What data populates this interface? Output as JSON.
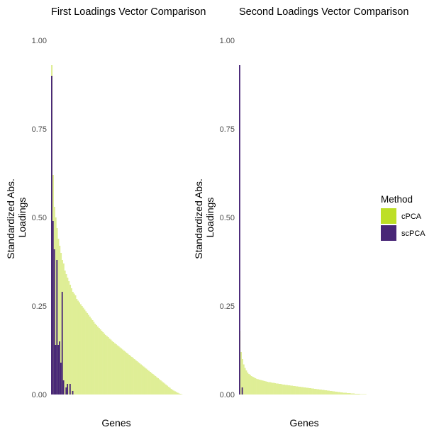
{
  "legend": {
    "title": "Method",
    "entries": [
      {
        "label": "cPCA",
        "color": "#dfee96",
        "key_color": "#bddf26"
      },
      {
        "label": "scPCA",
        "color": "#482677",
        "key_color": "#482677"
      }
    ]
  },
  "chart_data": [
    {
      "type": "bar",
      "title": "First Loadings Vector Comparison",
      "xlabel": "Genes",
      "ylabel": "Standardized Abs. Loadings",
      "ylim": [
        0,
        1
      ],
      "yticks": [
        "0.00",
        "0.25",
        "0.50",
        "0.75",
        "1.00"
      ],
      "x_tick_labels_shown": false,
      "n_genes": 100,
      "grid": false,
      "series": [
        {
          "name": "cPCA",
          "values": [
            0.93,
            0.62,
            0.53,
            0.5,
            0.47,
            0.44,
            0.42,
            0.4,
            0.38,
            0.37,
            0.35,
            0.34,
            0.33,
            0.32,
            0.31,
            0.3,
            0.29,
            0.285,
            0.28,
            0.27,
            0.265,
            0.26,
            0.255,
            0.25,
            0.245,
            0.24,
            0.235,
            0.23,
            0.225,
            0.22,
            0.215,
            0.21,
            0.205,
            0.2,
            0.196,
            0.192,
            0.188,
            0.184,
            0.18,
            0.176,
            0.172,
            0.168,
            0.165,
            0.162,
            0.158,
            0.155,
            0.151,
            0.148,
            0.145,
            0.142,
            0.139,
            0.136,
            0.133,
            0.13,
            0.127,
            0.124,
            0.121,
            0.118,
            0.115,
            0.112,
            0.109,
            0.106,
            0.103,
            0.1,
            0.097,
            0.094,
            0.091,
            0.088,
            0.085,
            0.082,
            0.079,
            0.076,
            0.073,
            0.07,
            0.067,
            0.064,
            0.061,
            0.058,
            0.055,
            0.052,
            0.049,
            0.046,
            0.043,
            0.04,
            0.037,
            0.034,
            0.031,
            0.028,
            0.025,
            0.022,
            0.019,
            0.016,
            0.013,
            0.011,
            0.009,
            0.007,
            0.005,
            0.003,
            0.002,
            0.001
          ]
        },
        {
          "name": "scPCA",
          "values": [
            0.9,
            0.49,
            0.41,
            0.14,
            0.38,
            0.14,
            0.15,
            0.09,
            0.29,
            0.04,
            0.0,
            0.02,
            0.03,
            0.0,
            0.03,
            0.0,
            0.01,
            0.0,
            0.0,
            0.0
          ]
        }
      ]
    },
    {
      "type": "bar",
      "title": "Second Loadings Vector Comparison",
      "xlabel": "Genes",
      "ylabel": "Standardized Abs. Loadings",
      "ylim": [
        0,
        1
      ],
      "yticks": [
        "0.00",
        "0.25",
        "0.50",
        "0.75",
        "1.00"
      ],
      "x_tick_labels_shown": false,
      "n_genes": 100,
      "grid": false,
      "series": [
        {
          "name": "cPCA",
          "values": [
            0.18,
            0.12,
            0.1,
            0.085,
            0.075,
            0.068,
            0.062,
            0.058,
            0.055,
            0.052,
            0.05,
            0.048,
            0.046,
            0.044,
            0.043,
            0.042,
            0.041,
            0.04,
            0.039,
            0.038,
            0.037,
            0.036,
            0.035,
            0.035,
            0.034,
            0.033,
            0.033,
            0.032,
            0.031,
            0.031,
            0.03,
            0.03,
            0.029,
            0.028,
            0.028,
            0.027,
            0.027,
            0.026,
            0.026,
            0.025,
            0.025,
            0.024,
            0.024,
            0.023,
            0.023,
            0.022,
            0.022,
            0.021,
            0.021,
            0.02,
            0.02,
            0.019,
            0.019,
            0.018,
            0.018,
            0.017,
            0.017,
            0.016,
            0.016,
            0.015,
            0.015,
            0.014,
            0.014,
            0.013,
            0.013,
            0.012,
            0.012,
            0.011,
            0.011,
            0.01,
            0.01,
            0.009,
            0.009,
            0.008,
            0.008,
            0.007,
            0.007,
            0.006,
            0.006,
            0.005,
            0.005,
            0.005,
            0.004,
            0.004,
            0.004,
            0.003,
            0.003,
            0.003,
            0.002,
            0.002,
            0.002,
            0.002,
            0.001,
            0.001,
            0.001,
            0.001,
            0.001,
            0.0,
            0.0,
            0.0
          ]
        },
        {
          "name": "scPCA",
          "values": [
            0.93,
            0.0,
            0.02,
            0.0,
            0.0
          ]
        }
      ]
    }
  ]
}
